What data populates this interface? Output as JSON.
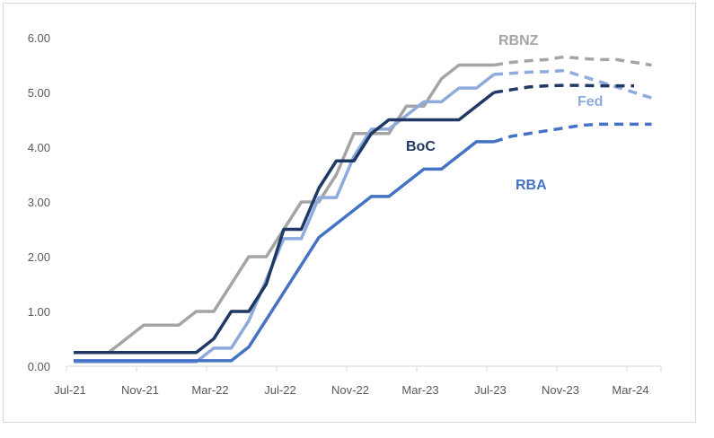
{
  "chart_data": {
    "type": "line",
    "title": "",
    "xlabel": "",
    "ylabel": "",
    "ylim": [
      0,
      6
    ],
    "grid": false,
    "yticks": [
      "0.00",
      "1.00",
      "2.00",
      "3.00",
      "4.00",
      "5.00",
      "6.00"
    ],
    "xtick_labels": [
      "Jul-21",
      "Nov-21",
      "Mar-22",
      "Jul-22",
      "Nov-22",
      "Mar-23",
      "Jul-23",
      "Nov-23",
      "Mar-24"
    ],
    "x_start_month": "Jul-21",
    "series": [
      {
        "name": "RBNZ",
        "color": "#a5a5a5",
        "actual": [
          0.25,
          0.25,
          0.25,
          0.5,
          0.75,
          0.75,
          0.75,
          1.0,
          1.0,
          1.5,
          2.0,
          2.0,
          2.5,
          3.0,
          3.0,
          3.5,
          4.25,
          4.25,
          4.25,
          4.75,
          4.75,
          5.25,
          5.5,
          5.5,
          5.5
        ],
        "forecast": [
          5.5,
          5.55,
          5.58,
          5.6,
          5.65,
          5.62,
          5.6,
          5.6,
          5.55,
          5.5
        ]
      },
      {
        "name": "Fed",
        "color": "#8faadc",
        "actual": [
          0.08,
          0.08,
          0.08,
          0.08,
          0.08,
          0.08,
          0.08,
          0.08,
          0.33,
          0.33,
          0.83,
          1.58,
          2.33,
          2.33,
          3.08,
          3.08,
          3.83,
          4.33,
          4.33,
          4.58,
          4.83,
          4.83,
          5.08,
          5.08,
          5.33
        ],
        "forecast": [
          5.33,
          5.35,
          5.37,
          5.38,
          5.4,
          5.3,
          5.2,
          5.1,
          5.0,
          4.9
        ]
      },
      {
        "name": "BoC",
        "color": "#1f3864",
        "actual": [
          0.25,
          0.25,
          0.25,
          0.25,
          0.25,
          0.25,
          0.25,
          0.25,
          0.5,
          1.0,
          1.0,
          1.5,
          2.5,
          2.5,
          3.25,
          3.75,
          3.75,
          4.25,
          4.5,
          4.5,
          4.5,
          4.5,
          4.5,
          4.75,
          5.0
        ],
        "forecast": [
          5.0,
          5.05,
          5.1,
          5.12,
          5.13,
          5.13,
          5.12,
          5.12,
          5.12
        ]
      },
      {
        "name": "RBA",
        "color": "#4472c4",
        "actual": [
          0.1,
          0.1,
          0.1,
          0.1,
          0.1,
          0.1,
          0.1,
          0.1,
          0.1,
          0.1,
          0.35,
          0.85,
          1.35,
          1.85,
          2.35,
          2.6,
          2.85,
          3.1,
          3.1,
          3.35,
          3.6,
          3.6,
          3.85,
          4.1,
          4.1
        ],
        "forecast": [
          4.1,
          4.2,
          4.25,
          4.3,
          4.35,
          4.4,
          4.42,
          4.42,
          4.42,
          4.42
        ]
      }
    ],
    "annotations": [
      "RBNZ",
      "Fed",
      "BoC",
      "RBA"
    ]
  }
}
